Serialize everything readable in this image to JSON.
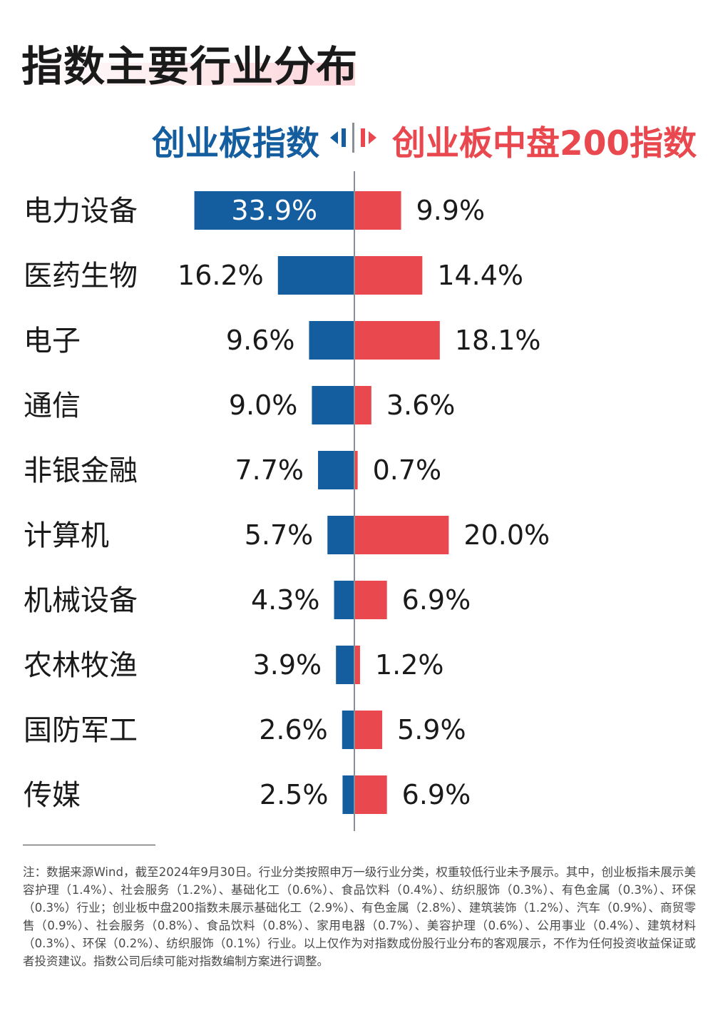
{
  "title": "指数主要行业分布",
  "legend": {
    "left_label": "创业板指数",
    "right_label": "创业板中盘200指数",
    "left_color": "#145ea0",
    "right_color": "#e9484f",
    "divider_color": "#8a8f96"
  },
  "chart_data": {
    "type": "bar",
    "orientation": "horizontal-diverging",
    "categories": [
      "电力设备",
      "医药生物",
      "电子",
      "通信",
      "非银金融",
      "计算机",
      "机械设备",
      "农林牧渔",
      "国防军工",
      "传媒"
    ],
    "series": [
      {
        "name": "创业板指数",
        "side": "left",
        "values": [
          33.9,
          16.2,
          9.6,
          9.0,
          7.7,
          5.7,
          4.3,
          3.9,
          2.6,
          2.5
        ],
        "labels": [
          "33.9%",
          "16.2%",
          "9.6%",
          "9.0%",
          "7.7%",
          "5.7%",
          "4.3%",
          "3.9%",
          "2.6%",
          "2.5%"
        ]
      },
      {
        "name": "创业板中盘200指数",
        "side": "right",
        "values": [
          9.9,
          14.4,
          18.1,
          3.6,
          0.7,
          20.0,
          6.9,
          1.2,
          5.9,
          6.9
        ],
        "labels": [
          "9.9%",
          "14.4%",
          "18.1%",
          "3.6%",
          "0.7%",
          "20.0%",
          "6.9%",
          "1.2%",
          "5.9%",
          "6.9%"
        ]
      }
    ],
    "unit": "%"
  },
  "note": "注：数据来源Wind，截至2024年9月30日。行业分类按照申万一级行业分类，权重较低行业未予展示。其中，创业板指未展示美容护理（1.4%）、社会服务（1.2%）、基础化工（0.6%）、食品饮料（0.4%）、纺织服饰（0.3%）、有色金属（0.3%）、环保（0.3%）行业；创业板中盘200指数未展示基础化工（2.9%）、有色金属（2.8%）、建筑装饰（1.2%）、汽车（0.9%）、商贸零售（0.9%）、社会服务（0.8%）、食品饮料（0.8%）、家用电器（0.7%）、美容护理（0.6%）、公用事业（0.4%）、建筑材料（0.3%）、环保（0.2%）、纺织服饰（0.1%）行业。以上仅作为对指数成份股行业分布的客观展示，不作为任何投资收益保证或者投资建议。指数公司后续可能对指数编制方案进行调整。"
}
